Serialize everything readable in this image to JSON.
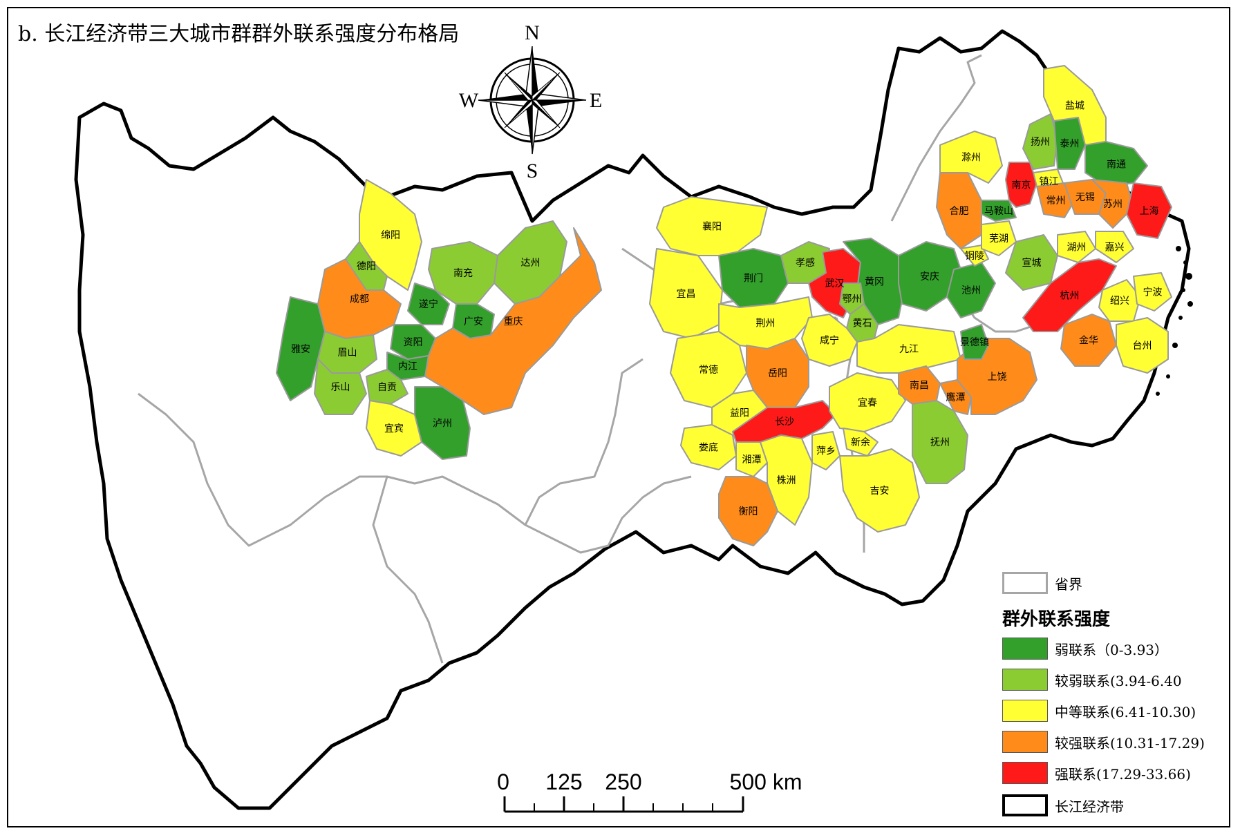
{
  "title": "b. 长江经济带三大城市群群外联系强度分布格局",
  "compass": {
    "n": "N",
    "s": "S",
    "e": "E",
    "w": "W"
  },
  "scale_bar": {
    "ticks": [
      "0",
      "125",
      "250",
      "500 km"
    ]
  },
  "legend": {
    "province_boundary": "省界",
    "heading": "群外联系强度",
    "belt_boundary": "长江经济带",
    "classes": [
      {
        "label": "弱联系（0-3.93）",
        "color": "#33a02c"
      },
      {
        "label": "较弱联系(3.94-6.40",
        "color": "#8ccc33"
      },
      {
        "label": "中等联系(6.41-10.30)",
        "color": "#ffff33"
      },
      {
        "label": "较强联系(10.31-17.29)",
        "color": "#ff8c1a"
      },
      {
        "label": "强联系(17.29-33.66)",
        "color": "#ff1a1a"
      }
    ]
  },
  "cities": [
    {
      "name": "绵阳",
      "class": 2
    },
    {
      "name": "德阳",
      "class": 1
    },
    {
      "name": "南充",
      "class": 1
    },
    {
      "name": "达州",
      "class": 1
    },
    {
      "name": "成都",
      "class": 3
    },
    {
      "name": "遂宁",
      "class": 0
    },
    {
      "name": "广安",
      "class": 0
    },
    {
      "name": "雅安",
      "class": 0
    },
    {
      "name": "眉山",
      "class": 1
    },
    {
      "name": "资阳",
      "class": 0
    },
    {
      "name": "内江",
      "class": 0
    },
    {
      "name": "重庆",
      "class": 3
    },
    {
      "name": "乐山",
      "class": 1
    },
    {
      "name": "自贡",
      "class": 1
    },
    {
      "name": "宜宾",
      "class": 2
    },
    {
      "name": "泸州",
      "class": 0
    },
    {
      "name": "襄阳",
      "class": 2
    },
    {
      "name": "荆门",
      "class": 0
    },
    {
      "name": "孝感",
      "class": 1
    },
    {
      "name": "武汉",
      "class": 4
    },
    {
      "name": "黄冈",
      "class": 0
    },
    {
      "name": "鄂州",
      "class": 1
    },
    {
      "name": "黄石",
      "class": 1
    },
    {
      "name": "宜昌",
      "class": 2
    },
    {
      "name": "荆州",
      "class": 2
    },
    {
      "name": "咸宁",
      "class": 2
    },
    {
      "name": "常德",
      "class": 2
    },
    {
      "name": "岳阳",
      "class": 3
    },
    {
      "name": "益阳",
      "class": 2
    },
    {
      "name": "长沙",
      "class": 4
    },
    {
      "name": "娄底",
      "class": 2
    },
    {
      "name": "湘潭",
      "class": 2
    },
    {
      "name": "株洲",
      "class": 2
    },
    {
      "name": "衡阳",
      "class": 3
    },
    {
      "name": "萍乡",
      "class": 2
    },
    {
      "name": "宜春",
      "class": 2
    },
    {
      "name": "新余",
      "class": 2
    },
    {
      "name": "吉安",
      "class": 2
    },
    {
      "name": "九江",
      "class": 2
    },
    {
      "name": "南昌",
      "class": 3
    },
    {
      "name": "抚州",
      "class": 1
    },
    {
      "name": "鹰潭",
      "class": 3
    },
    {
      "name": "上饶",
      "class": 3
    },
    {
      "name": "景德镇",
      "class": 0
    },
    {
      "name": "安庆",
      "class": 0
    },
    {
      "name": "池州",
      "class": 0
    },
    {
      "name": "铜陵",
      "class": 2
    },
    {
      "name": "芜湖",
      "class": 2
    },
    {
      "name": "马鞍山",
      "class": 0
    },
    {
      "name": "合肥",
      "class": 3
    },
    {
      "name": "滁州",
      "class": 2
    },
    {
      "name": "南京",
      "class": 4
    },
    {
      "name": "镇江",
      "class": 2
    },
    {
      "name": "扬州",
      "class": 1
    },
    {
      "name": "泰州",
      "class": 0
    },
    {
      "name": "盐城",
      "class": 2
    },
    {
      "name": "南通",
      "class": 0
    },
    {
      "name": "常州",
      "class": 3
    },
    {
      "name": "无锡",
      "class": 3
    },
    {
      "name": "苏州",
      "class": 3
    },
    {
      "name": "上海",
      "class": 4
    },
    {
      "name": "宣城",
      "class": 1
    },
    {
      "name": "湖州",
      "class": 2
    },
    {
      "name": "嘉兴",
      "class": 2
    },
    {
      "name": "杭州",
      "class": 4
    },
    {
      "name": "绍兴",
      "class": 2
    },
    {
      "name": "宁波",
      "class": 2
    },
    {
      "name": "金华",
      "class": 3
    },
    {
      "name": "台州",
      "class": 2
    }
  ]
}
